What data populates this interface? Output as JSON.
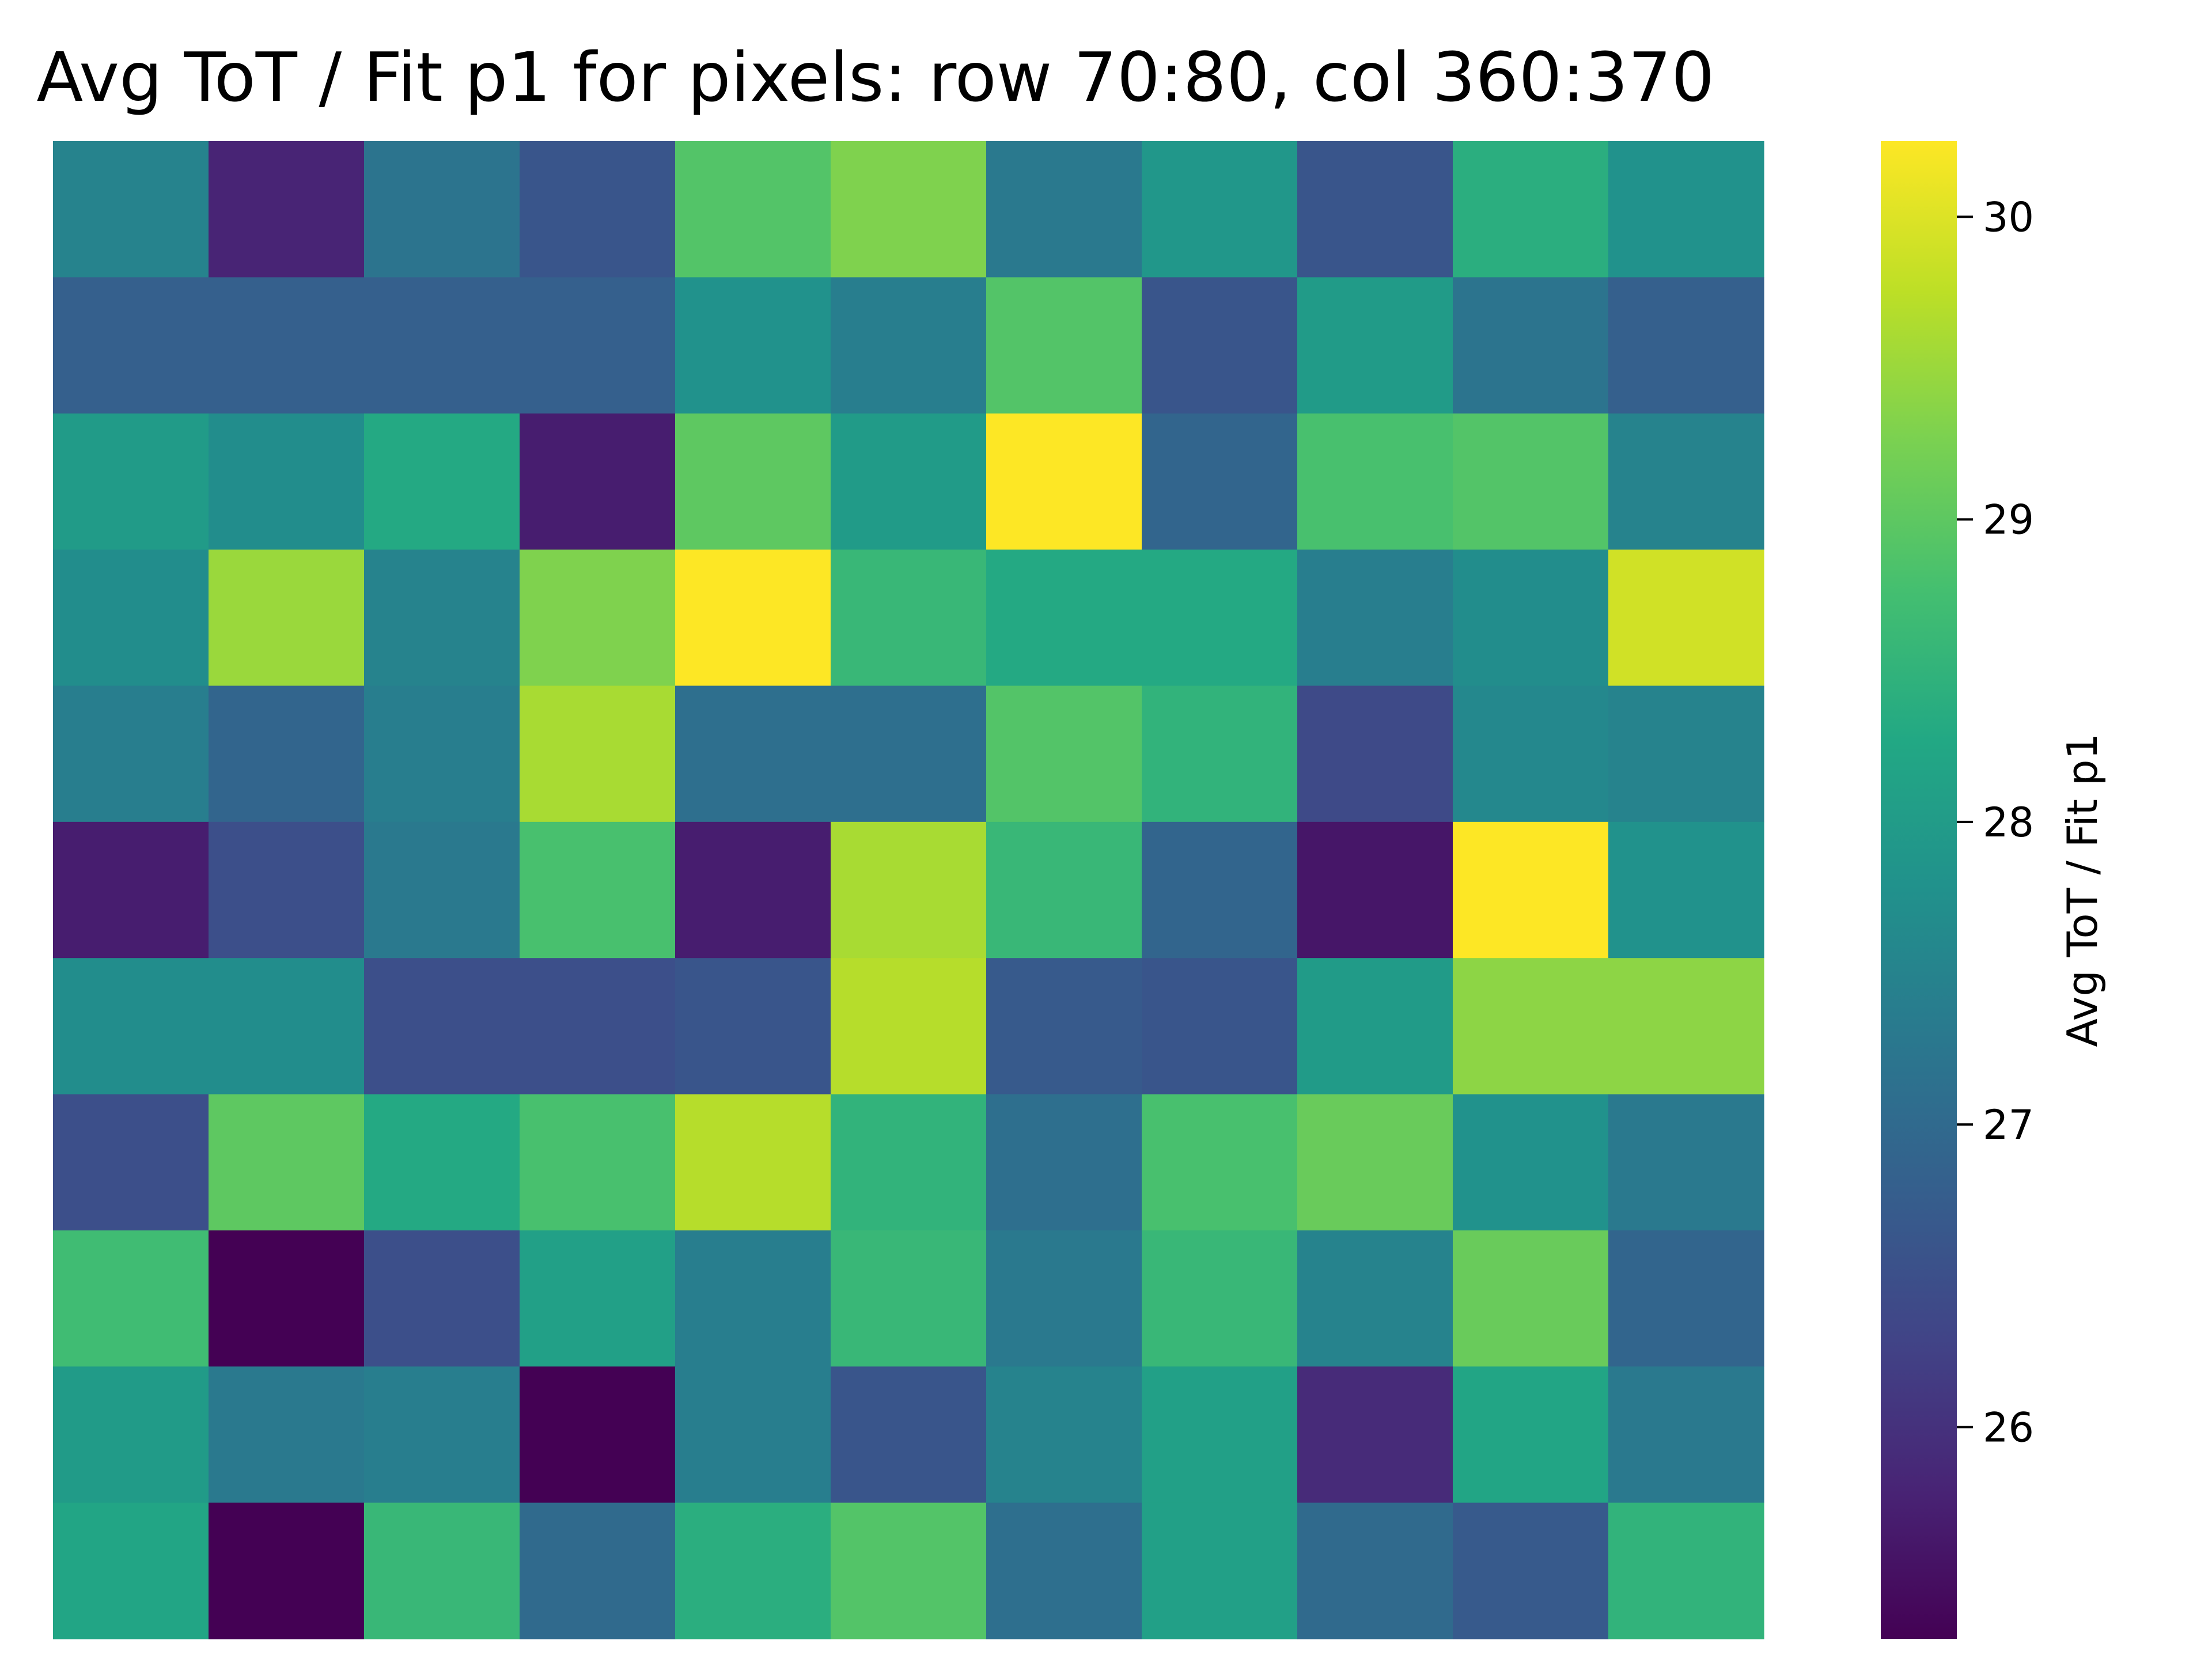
{
  "chart_data": {
    "type": "heatmap",
    "title": "Avg ToT / Fit p1 for pixels: row 70:80, col 360:370",
    "xlabel": "",
    "ylabel": "",
    "colormap": "viridis",
    "colorbar": {
      "label": "Avg ToT / Fit p1",
      "range": [
        25.3,
        30.25
      ],
      "ticks": [
        26,
        27,
        28,
        29,
        30
      ],
      "tick_labels": [
        "26",
        "27",
        "28",
        "29",
        "30"
      ]
    },
    "rows": 11,
    "cols": 11,
    "values": [
      [
        27.5,
        25.8,
        27.2,
        26.6,
        28.9,
        29.3,
        27.3,
        27.9,
        26.6,
        28.4,
        27.8
      ],
      [
        26.8,
        26.8,
        26.8,
        26.8,
        27.8,
        27.4,
        28.9,
        26.6,
        28.0,
        27.2,
        26.8
      ],
      [
        28.0,
        27.7,
        28.3,
        25.7,
        29.0,
        28.0,
        30.25,
        26.9,
        28.8,
        28.9,
        27.5
      ],
      [
        27.7,
        29.5,
        27.5,
        29.3,
        30.25,
        28.6,
        28.3,
        28.3,
        27.4,
        27.7,
        29.9
      ],
      [
        27.4,
        26.9,
        27.4,
        29.6,
        27.1,
        27.1,
        28.9,
        28.5,
        26.4,
        27.6,
        27.5
      ],
      [
        25.7,
        26.5,
        27.3,
        28.8,
        25.7,
        29.6,
        28.6,
        26.9,
        25.6,
        30.25,
        27.8
      ],
      [
        27.7,
        27.7,
        26.5,
        26.5,
        26.6,
        29.7,
        26.7,
        26.6,
        28.0,
        29.4,
        29.4
      ],
      [
        26.5,
        29.0,
        28.3,
        28.8,
        29.7,
        28.5,
        27.1,
        28.8,
        29.1,
        27.8,
        27.3
      ],
      [
        28.7,
        25.3,
        26.5,
        28.1,
        27.4,
        28.6,
        27.3,
        28.6,
        27.5,
        29.1,
        26.9
      ],
      [
        28.0,
        27.3,
        27.4,
        25.3,
        27.4,
        26.6,
        27.5,
        28.1,
        25.9,
        28.2,
        27.3
      ],
      [
        28.2,
        25.3,
        28.6,
        27.0,
        28.4,
        28.9,
        27.1,
        28.1,
        27.0,
        26.7,
        28.5
      ]
    ]
  }
}
